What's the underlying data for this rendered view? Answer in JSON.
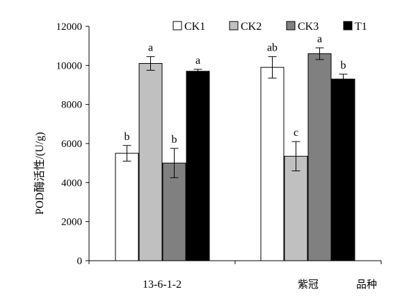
{
  "chart_data": {
    "type": "bar",
    "title": "",
    "ylabel": "POD酶活性/(U/g)",
    "xlabel": "品种",
    "ylim": [
      0,
      12000
    ],
    "yticks": [
      0,
      2000,
      4000,
      6000,
      8000,
      10000,
      12000
    ],
    "categories": [
      "13-6-1-2",
      "紫冠"
    ],
    "series": [
      {
        "name": "CK1",
        "color": "#ffffff",
        "values": [
          5500,
          9900
        ],
        "errors": [
          400,
          550
        ],
        "labels": [
          "b",
          "ab"
        ]
      },
      {
        "name": "CK2",
        "color": "#c0c0c0",
        "values": [
          10100,
          5350
        ],
        "errors": [
          350,
          750
        ],
        "labels": [
          "a",
          "c"
        ]
      },
      {
        "name": "CK3",
        "color": "#808080",
        "values": [
          5000,
          10600
        ],
        "errors": [
          750,
          300
        ],
        "labels": [
          "b",
          "a"
        ]
      },
      {
        "name": "T1",
        "color": "#000000",
        "values": [
          9700,
          9300
        ],
        "errors": [
          100,
          250
        ],
        "labels": [
          "a",
          "b"
        ]
      }
    ],
    "legend": "top",
    "grid": false
  }
}
